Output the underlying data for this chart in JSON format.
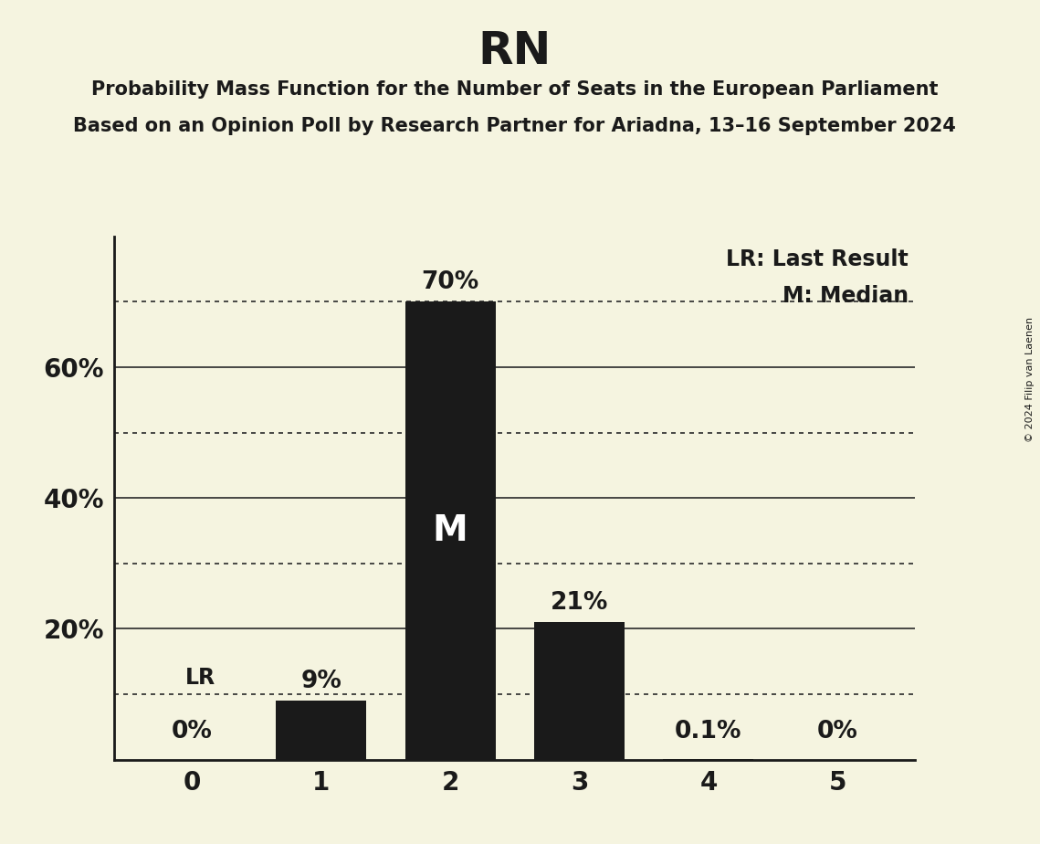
{
  "title": "RN",
  "subtitle1": "Probability Mass Function for the Number of Seats in the European Parliament",
  "subtitle2": "Based on an Opinion Poll by Research Partner for Ariadna, 13–16 September 2024",
  "copyright": "© 2024 Filip van Laenen",
  "categories": [
    0,
    1,
    2,
    3,
    4,
    5
  ],
  "values": [
    0.0,
    9.0,
    70.0,
    21.0,
    0.1,
    0.0
  ],
  "bar_color": "#1a1a1a",
  "background_color": "#f5f4e0",
  "value_labels": [
    "0%",
    "9%",
    "70%",
    "21%",
    "0.1%",
    "0%"
  ],
  "median_bar": 2,
  "lr_bar": 0,
  "lr_value": 10.0,
  "yticks": [
    20,
    40,
    60
  ],
  "ytick_labels": [
    "20%",
    "40%",
    "60%"
  ],
  "solid_lines": [
    20,
    40,
    60
  ],
  "dotted_lines": [
    10,
    30,
    50,
    70
  ],
  "ylim": [
    0,
    80
  ],
  "legend_lr": "LR: Last Result",
  "legend_m": "M: Median",
  "title_fontsize": 36,
  "subtitle_fontsize": 15,
  "tick_fontsize": 20,
  "bar_label_fontsize": 19,
  "median_label_fontsize": 28,
  "lr_label_fontsize": 17,
  "legend_fontsize": 17
}
